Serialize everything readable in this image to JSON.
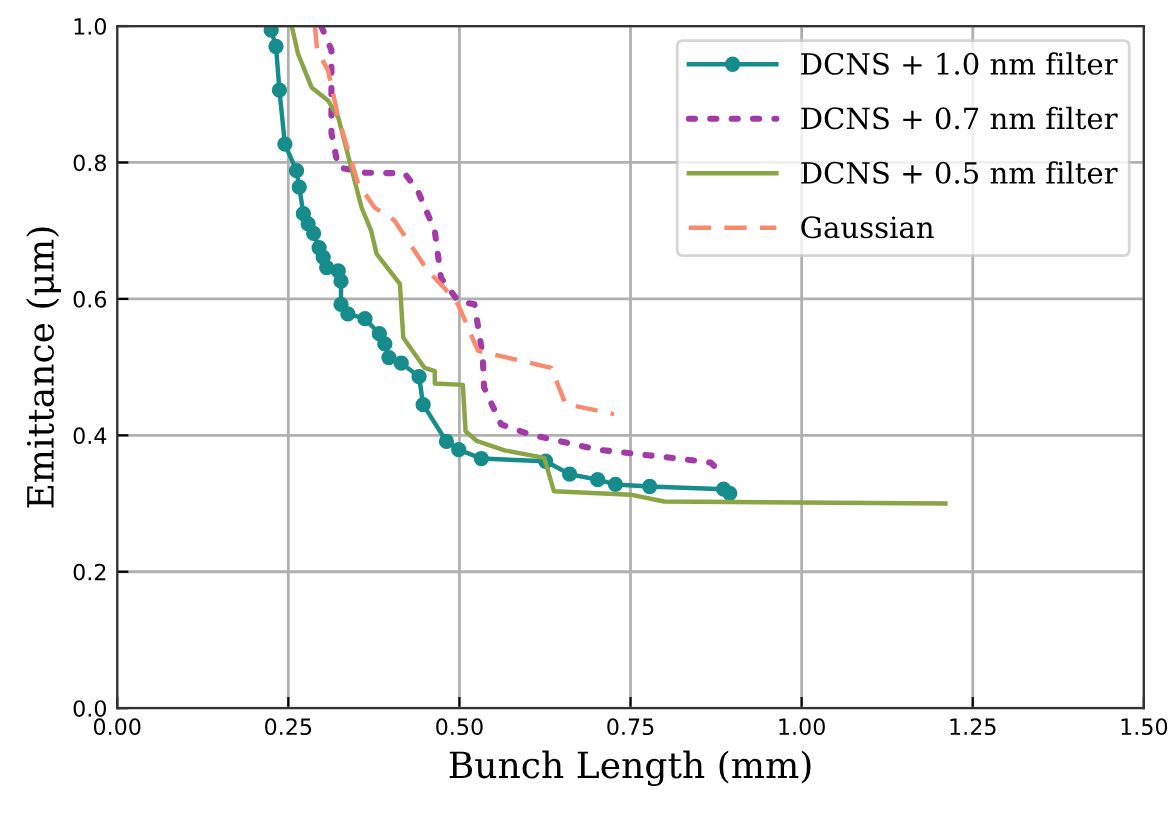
{
  "chart_data": {
    "type": "line",
    "xlabel": "Bunch Length (mm)",
    "ylabel": "Emittance (μm)",
    "xlim": [
      0,
      1.5
    ],
    "ylim": [
      0,
      1.0
    ],
    "xticks": [
      {
        "value": 0,
        "label": "0.00"
      },
      {
        "value": 0.25,
        "label": "0.25"
      },
      {
        "value": 0.5,
        "label": "0.50"
      },
      {
        "value": 0.75,
        "label": "0.75"
      },
      {
        "value": 1.0,
        "label": "1.00"
      },
      {
        "value": 1.25,
        "label": "1.25"
      },
      {
        "value": 1.5,
        "label": "1.50"
      }
    ],
    "yticks": [
      {
        "value": 0,
        "label": "0.0"
      },
      {
        "value": 0.2,
        "label": "0.2"
      },
      {
        "value": 0.4,
        "label": "0.4"
      },
      {
        "value": 0.6,
        "label": "0.6"
      },
      {
        "value": 0.8,
        "label": "0.8"
      },
      {
        "value": 1.0,
        "label": "1.0"
      }
    ],
    "grid": true,
    "legend": "top right",
    "series": [
      {
        "name": "DCNS + 1.0 nm filter",
        "color": "#168c8c",
        "marker": "circle",
        "line_style": "solid",
        "x": [
          0.225,
          0.232,
          0.237,
          0.245,
          0.262,
          0.266,
          0.272,
          0.279,
          0.287,
          0.295,
          0.301,
          0.306,
          0.323,
          0.327,
          0.327,
          0.337,
          0.362,
          0.383,
          0.391,
          0.397,
          0.415,
          0.441,
          0.447,
          0.481,
          0.499,
          0.532,
          0.626,
          0.661,
          0.702,
          0.728,
          0.778,
          0.886,
          0.895
        ],
        "values": [
          0.994,
          0.97,
          0.906,
          0.827,
          0.788,
          0.764,
          0.725,
          0.71,
          0.696,
          0.675,
          0.661,
          0.646,
          0.641,
          0.626,
          0.592,
          0.578,
          0.571,
          0.549,
          0.534,
          0.514,
          0.506,
          0.486,
          0.445,
          0.391,
          0.379,
          0.366,
          0.362,
          0.343,
          0.335,
          0.328,
          0.325,
          0.321,
          0.315
        ]
      },
      {
        "name": "DCNS + 0.7 nm filter",
        "color": "#a23aa8",
        "marker": "none",
        "line_style": "dotted",
        "x": [
          0.298,
          0.313,
          0.313,
          0.323,
          0.362,
          0.42,
          0.439,
          0.464,
          0.473,
          0.498,
          0.522,
          0.534,
          0.536,
          0.561,
          0.604,
          0.702,
          0.828,
          0.867,
          0.881
        ],
        "values": [
          1.0,
          0.965,
          0.843,
          0.793,
          0.785,
          0.784,
          0.759,
          0.7,
          0.631,
          0.597,
          0.592,
          0.517,
          0.47,
          0.416,
          0.401,
          0.379,
          0.365,
          0.36,
          0.347
        ]
      },
      {
        "name": "DCNS + 0.5 nm filter",
        "color": "#8aa446",
        "marker": "none",
        "line_style": "solid",
        "x": [
          0.255,
          0.264,
          0.284,
          0.308,
          0.323,
          0.357,
          0.371,
          0.379,
          0.413,
          0.418,
          0.449,
          0.464,
          0.464,
          0.505,
          0.509,
          0.525,
          0.566,
          0.624,
          0.638,
          0.75,
          0.799,
          1.21
        ],
        "values": [
          1.0,
          0.96,
          0.91,
          0.891,
          0.866,
          0.734,
          0.7,
          0.666,
          0.622,
          0.543,
          0.499,
          0.494,
          0.476,
          0.474,
          0.406,
          0.392,
          0.378,
          0.367,
          0.318,
          0.313,
          0.303,
          0.3
        ]
      },
      {
        "name": "Gaussian",
        "color": "#fa8a6e",
        "marker": "none",
        "line_style": "dashed",
        "x": [
          0.289,
          0.292,
          0.308,
          0.323,
          0.352,
          0.376,
          0.405,
          0.454,
          0.478,
          0.498,
          0.527,
          0.634,
          0.655,
          0.726
        ],
        "values": [
          1.0,
          0.965,
          0.935,
          0.866,
          0.769,
          0.734,
          0.715,
          0.641,
          0.616,
          0.592,
          0.524,
          0.499,
          0.446,
          0.431
        ]
      }
    ]
  }
}
